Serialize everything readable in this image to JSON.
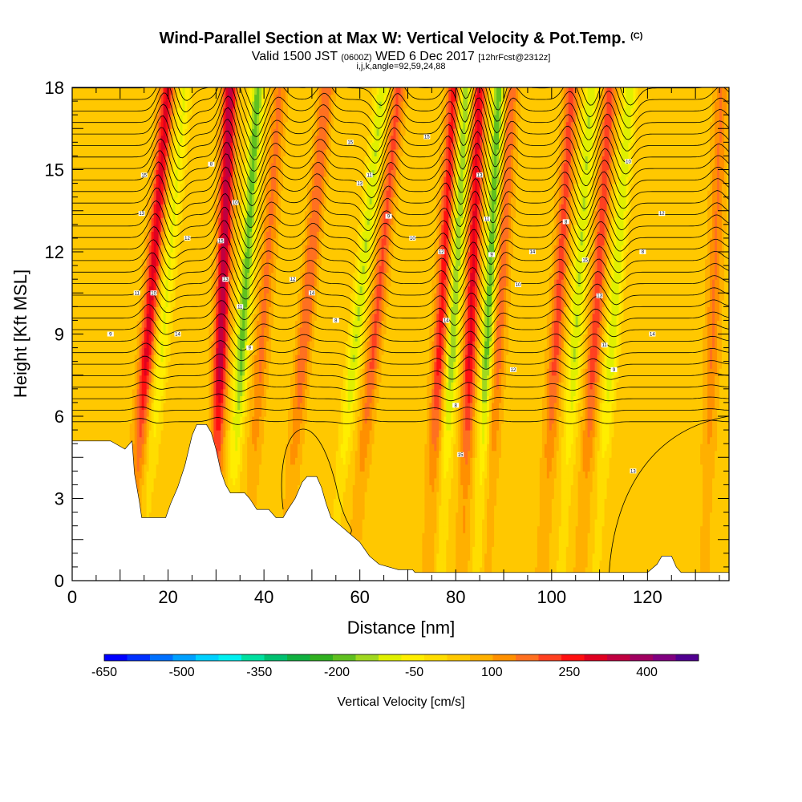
{
  "header": {
    "title": "Wind-Parallel Section at Max W: Vertical Velocity & Pot.Temp.",
    "title_unit": "(C)",
    "valid_prefix": "Valid 1500 JST",
    "valid_zulu": "(0600Z)",
    "valid_date": "WED 6 Dec 2017",
    "forecast": "[12hrFcst@2312z]",
    "subline": "i,j,k,angle=92,59,24,88"
  },
  "chart_data": {
    "type": "heatmap",
    "title": "Wind-Parallel Section at Max W: Vertical Velocity & Pot.Temp.",
    "xlabel": "Distance [nm]",
    "ylabel": "Height [Kft MSL]",
    "xlim": [
      0,
      137
    ],
    "ylim": [
      0,
      18
    ],
    "x_ticks": [
      "0",
      "20",
      "40",
      "60",
      "80",
      "100",
      "120"
    ],
    "x_tick_values": [
      0,
      20,
      40,
      60,
      80,
      100,
      120
    ],
    "y_ticks": [
      "0",
      "3",
      "6",
      "9",
      "12",
      "15",
      "18"
    ],
    "y_tick_values": [
      0,
      3,
      6,
      9,
      12,
      15,
      18
    ],
    "terrain_kft": [
      [
        0,
        5.1
      ],
      [
        8,
        5.1
      ],
      [
        11,
        4.8
      ],
      [
        12.5,
        5.1
      ],
      [
        13,
        3.9
      ],
      [
        14,
        2.9
      ],
      [
        14.5,
        2.3
      ],
      [
        18,
        2.3
      ],
      [
        19.5,
        2.3
      ],
      [
        20.5,
        2.8
      ],
      [
        22,
        3.4
      ],
      [
        23.5,
        4.2
      ],
      [
        25,
        5.3
      ],
      [
        26,
        5.7
      ],
      [
        28,
        5.7
      ],
      [
        29,
        5.4
      ],
      [
        30,
        4.8
      ],
      [
        31,
        4.0
      ],
      [
        32,
        3.5
      ],
      [
        33,
        3.2
      ],
      [
        36,
        3.2
      ],
      [
        37,
        3.0
      ],
      [
        38.5,
        2.6
      ],
      [
        41,
        2.6
      ],
      [
        42.5,
        2.3
      ],
      [
        44,
        2.3
      ],
      [
        45,
        2.6
      ],
      [
        46.5,
        3.0
      ],
      [
        48,
        3.6
      ],
      [
        49,
        3.8
      ],
      [
        51,
        3.8
      ],
      [
        52,
        3.4
      ],
      [
        53,
        2.8
      ],
      [
        54,
        2.3
      ],
      [
        56,
        2.0
      ],
      [
        58,
        1.7
      ],
      [
        60,
        1.4
      ],
      [
        62,
        0.9
      ],
      [
        64,
        0.6
      ],
      [
        68,
        0.4
      ],
      [
        71,
        0.4
      ],
      [
        71.5,
        0.3
      ],
      [
        120,
        0.3
      ],
      [
        122,
        0.6
      ],
      [
        123,
        0.9
      ],
      [
        125,
        0.9
      ],
      [
        126,
        0.5
      ],
      [
        127,
        0.3
      ],
      [
        137,
        0.3
      ]
    ],
    "w_bands": [
      {
        "x": 14.5,
        "tilt": 0.45,
        "up": 260
      },
      {
        "x": 17.5,
        "tilt": 0.5,
        "up": -120
      },
      {
        "x": 30.5,
        "tilt": 0.2,
        "up": 320
      },
      {
        "x": 34.5,
        "tilt": 0.35,
        "up": -220
      },
      {
        "x": 38.5,
        "tilt": 0.4,
        "up": 120
      },
      {
        "x": 47.0,
        "tilt": 0.5,
        "up": 150
      },
      {
        "x": 57.5,
        "tilt": 0.6,
        "up": -160
      },
      {
        "x": 61.5,
        "tilt": 0.55,
        "up": 160
      },
      {
        "x": 78.5,
        "tilt": 0.3,
        "up": -200
      },
      {
        "x": 76.0,
        "tilt": 0.3,
        "up": 220
      },
      {
        "x": 82.5,
        "tilt": 0.2,
        "up": 250
      },
      {
        "x": 86.0,
        "tilt": 0.25,
        "up": -230
      },
      {
        "x": 88.0,
        "tilt": 0.3,
        "up": 150
      },
      {
        "x": 100.0,
        "tilt": 0.35,
        "up": 170
      },
      {
        "x": 104.0,
        "tilt": 0.35,
        "up": -160
      },
      {
        "x": 108.0,
        "tilt": 0.35,
        "up": 180
      },
      {
        "x": 111.5,
        "tilt": 0.4,
        "up": -150
      },
      {
        "x": 133.0,
        "tilt": 0.2,
        "up": 110
      }
    ],
    "colorbar": {
      "label": "Vertical Velocity [cm/s]",
      "tick_labels": [
        "-650",
        "-500",
        "-350",
        "-200",
        "-50",
        "100",
        "250",
        "400"
      ],
      "tick_values": [
        -650,
        -500,
        -350,
        -200,
        -50,
        100,
        250,
        400
      ],
      "min": -650,
      "max": 500,
      "colors": [
        "#0000ff",
        "#0030ff",
        "#0070ff",
        "#00a0ff",
        "#00d0ff",
        "#00f0f0",
        "#00e0a0",
        "#00c070",
        "#10b040",
        "#30b020",
        "#60c020",
        "#a0d820",
        "#e0f000",
        "#ffee00",
        "#ffdd00",
        "#ffc800",
        "#ffb000",
        "#ff9000",
        "#ff7020",
        "#ff4020",
        "#ff1010",
        "#e00020",
        "#c00040",
        "#a00060",
        "#800080",
        "#500090"
      ]
    },
    "contour_labels": [
      "15",
      "13",
      "11",
      "9",
      "10",
      "12",
      "14",
      "8"
    ]
  }
}
